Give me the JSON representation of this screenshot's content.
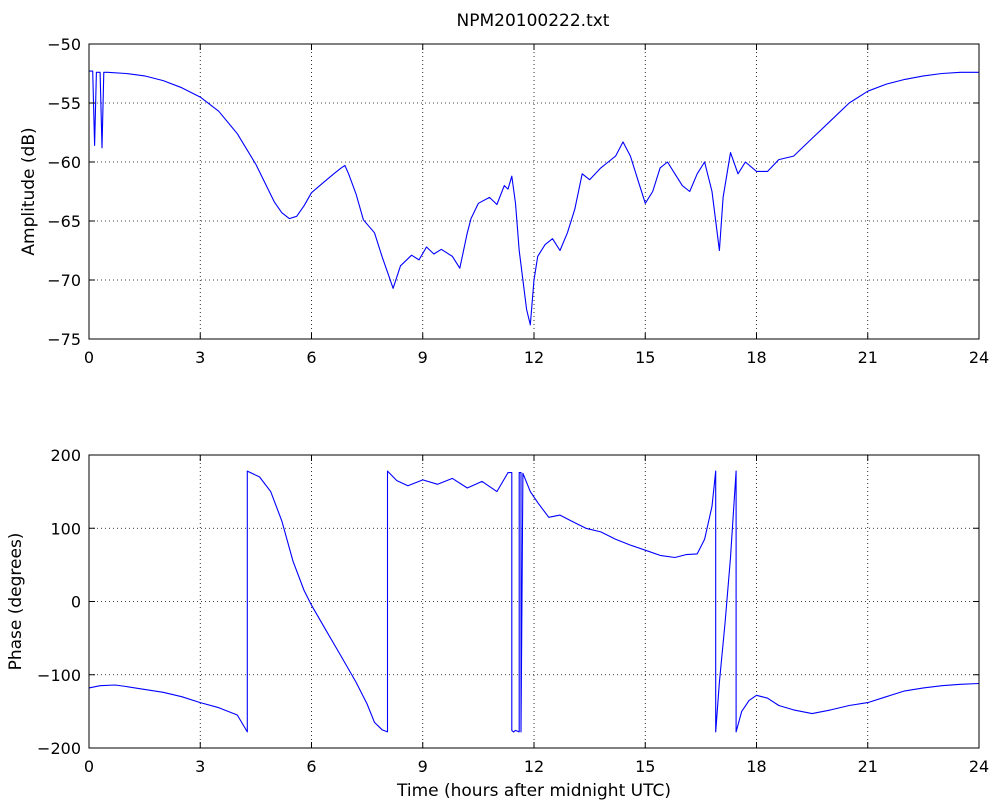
{
  "figure": {
    "title": "NPM20100222.txt"
  },
  "chart_data": [
    {
      "type": "line",
      "title": "NPM20100222.txt",
      "xlabel": "",
      "ylabel": "Amplitude (dB)",
      "xlim": [
        0,
        24
      ],
      "ylim": [
        -75,
        -50
      ],
      "xticks": [
        "0",
        "3",
        "6",
        "9",
        "12",
        "15",
        "18",
        "21",
        "24"
      ],
      "yticks": [
        "−75",
        "−70",
        "−65",
        "−60",
        "−55",
        "−50"
      ],
      "grid": true,
      "line_color": "#0000ff",
      "series": [
        {
          "x": [
            0,
            0.1,
            0.15,
            0.2,
            0.25,
            0.3,
            0.35,
            0.4,
            0.5,
            1.0,
            1.5,
            2.0,
            2.5,
            3.0,
            3.5,
            4.0,
            4.5,
            5.0,
            5.2,
            5.4,
            5.6,
            5.8,
            6.0,
            6.3,
            6.6,
            6.8,
            6.9,
            7.0,
            7.2,
            7.4,
            7.7,
            7.9,
            8.1,
            8.2,
            8.4,
            8.7,
            8.9,
            9.1,
            9.3,
            9.5,
            9.8,
            10.0,
            10.2,
            10.3,
            10.5,
            10.8,
            11.0,
            11.2,
            11.3,
            11.4,
            11.5,
            11.6,
            11.7,
            11.8,
            11.9,
            12.0,
            12.1,
            12.3,
            12.5,
            12.7,
            12.9,
            13.1,
            13.3,
            13.5,
            13.8,
            14.0,
            14.2,
            14.4,
            14.6,
            14.8,
            15.0,
            15.2,
            15.4,
            15.6,
            15.8,
            16.0,
            16.2,
            16.4,
            16.6,
            16.8,
            16.9,
            17.0,
            17.1,
            17.3,
            17.5,
            17.7,
            18.0,
            18.3,
            18.6,
            19.0,
            19.5,
            20.0,
            20.5,
            21.0,
            21.5,
            22.0,
            22.5,
            23.0,
            23.5,
            24.0
          ],
          "y": [
            -52.3,
            -52.3,
            -58.6,
            -52.4,
            -52.4,
            -52.4,
            -58.8,
            -52.4,
            -52.4,
            -52.5,
            -52.7,
            -53.1,
            -53.7,
            -54.5,
            -55.7,
            -57.6,
            -60.2,
            -63.4,
            -64.3,
            -64.8,
            -64.6,
            -63.7,
            -62.6,
            -61.8,
            -61.0,
            -60.5,
            -60.3,
            -61.0,
            -62.7,
            -64.9,
            -66.0,
            -68.0,
            -69.8,
            -70.7,
            -68.8,
            -67.9,
            -68.3,
            -67.2,
            -67.8,
            -67.4,
            -68.0,
            -69.0,
            -66.0,
            -64.8,
            -63.5,
            -63.0,
            -63.6,
            -62.0,
            -62.3,
            -61.2,
            -63.5,
            -67.5,
            -70.0,
            -72.5,
            -73.8,
            -70.0,
            -68.0,
            -67.0,
            -66.5,
            -67.5,
            -66.0,
            -64.0,
            -61.0,
            -61.5,
            -60.5,
            -60.0,
            -59.5,
            -58.3,
            -59.5,
            -61.5,
            -63.5,
            -62.5,
            -60.5,
            -60.0,
            -61.0,
            -62.0,
            -62.5,
            -61.0,
            -60.0,
            -62.5,
            -65.0,
            -67.5,
            -63.0,
            -59.2,
            -61.0,
            -60.0,
            -60.8,
            -60.8,
            -59.8,
            -59.5,
            -58.0,
            -56.5,
            -55.0,
            -54.0,
            -53.4,
            -53.0,
            -52.7,
            -52.5,
            -52.4,
            -52.4
          ]
        }
      ]
    },
    {
      "type": "line",
      "title": "",
      "xlabel": "Time (hours after midnight UTC)",
      "ylabel": "Phase (degrees)",
      "xlim": [
        0,
        24
      ],
      "ylim": [
        -200,
        200
      ],
      "xticks": [
        "0",
        "3",
        "6",
        "9",
        "12",
        "15",
        "18",
        "21",
        "24"
      ],
      "yticks": [
        "−200",
        "−100",
        "0",
        "100",
        "200"
      ],
      "grid": true,
      "line_color": "#0000ff",
      "series": [
        {
          "x": [
            0,
            0.3,
            0.7,
            1.0,
            1.5,
            2.0,
            2.5,
            3.0,
            3.5,
            4.0,
            4.27,
            4.27,
            4.6,
            4.9,
            5.2,
            5.5,
            5.8,
            6.0,
            6.4,
            6.8,
            7.2,
            7.5,
            7.7,
            7.9,
            8.05,
            8.05,
            8.3,
            8.6,
            9.0,
            9.4,
            9.8,
            10.2,
            10.6,
            11.0,
            11.3,
            11.4,
            11.4,
            11.45,
            11.5,
            11.6,
            11.6,
            11.65,
            11.65,
            11.7,
            11.9,
            12.1,
            12.4,
            12.7,
            13.0,
            13.4,
            13.8,
            14.2,
            14.6,
            15.0,
            15.4,
            15.8,
            16.1,
            16.4,
            16.6,
            16.8,
            16.9,
            16.9,
            17.0,
            17.15,
            17.3,
            17.45,
            17.45,
            17.6,
            17.8,
            18.0,
            18.3,
            18.6,
            19.0,
            19.5,
            20.0,
            20.5,
            21.0,
            21.5,
            22.0,
            22.5,
            23.0,
            23.5,
            24.0
          ],
          "y": [
            -118,
            -115,
            -114,
            -116,
            -120,
            -124,
            -130,
            -138,
            -145,
            -155,
            -178,
            178,
            170,
            150,
            110,
            55,
            15,
            -5,
            -40,
            -75,
            -110,
            -140,
            -165,
            -175,
            -178,
            178,
            165,
            158,
            166,
            160,
            168,
            155,
            164,
            150,
            176,
            176,
            -176,
            -178,
            -176,
            -178,
            176,
            176,
            -178,
            175,
            150,
            135,
            115,
            118,
            110,
            100,
            95,
            85,
            77,
            70,
            63,
            60,
            64,
            65,
            85,
            130,
            178,
            -178,
            -110,
            -30,
            60,
            178,
            -178,
            -150,
            -135,
            -128,
            -132,
            -142,
            -148,
            -153,
            -148,
            -142,
            -138,
            -130,
            -122,
            -118,
            -115,
            -113,
            -112
          ]
        }
      ]
    }
  ]
}
